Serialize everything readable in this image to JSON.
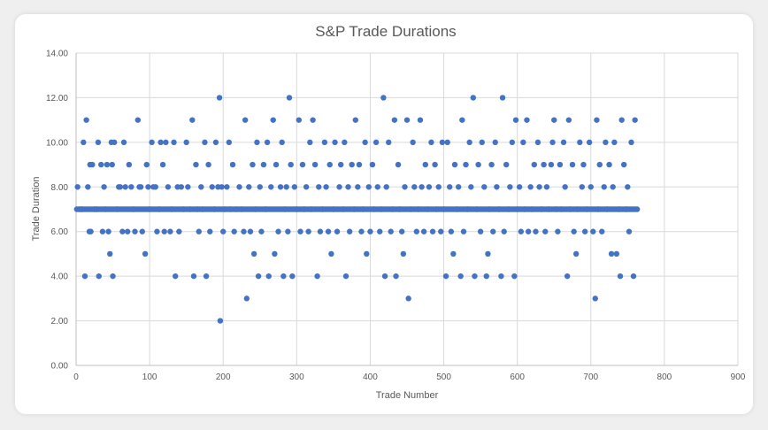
{
  "chart_data": {
    "type": "scatter",
    "title": "S&P Trade Durations",
    "xlabel": "Trade Number",
    "ylabel": "Trade Duration",
    "xlim": [
      0,
      900
    ],
    "ylim": [
      0,
      14
    ],
    "x_ticks": [
      "0",
      "100",
      "200",
      "300",
      "400",
      "500",
      "600",
      "700",
      "800",
      "900"
    ],
    "y_ticks": [
      "0.00",
      "2.00",
      "4.00",
      "6.00",
      "8.00",
      "10.00",
      "12.00",
      "14.00"
    ],
    "grid": true,
    "legend": "none",
    "marker_color": "#4472c4",
    "series": [
      {
        "points": [
          [
            2,
            8
          ],
          [
            5,
            7
          ],
          [
            8,
            7
          ],
          [
            10,
            10
          ],
          [
            12,
            4
          ],
          [
            14,
            11
          ],
          [
            16,
            8
          ],
          [
            18,
            6
          ],
          [
            19,
            9
          ],
          [
            20,
            6
          ],
          [
            22,
            9
          ],
          [
            25,
            7
          ],
          [
            28,
            7
          ],
          [
            30,
            10
          ],
          [
            31,
            4
          ],
          [
            34,
            9
          ],
          [
            36,
            6
          ],
          [
            38,
            8
          ],
          [
            40,
            7
          ],
          [
            42,
            9
          ],
          [
            44,
            6
          ],
          [
            46,
            5
          ],
          [
            48,
            10
          ],
          [
            49,
            9
          ],
          [
            50,
            4
          ],
          [
            52,
            10
          ],
          [
            56,
            7
          ],
          [
            58,
            8
          ],
          [
            60,
            8
          ],
          [
            63,
            6
          ],
          [
            65,
            10
          ],
          [
            67,
            8
          ],
          [
            70,
            6
          ],
          [
            72,
            9
          ],
          [
            75,
            8
          ],
          [
            78,
            7
          ],
          [
            80,
            6
          ],
          [
            84,
            11
          ],
          [
            86,
            8
          ],
          [
            88,
            8
          ],
          [
            90,
            6
          ],
          [
            94,
            5
          ],
          [
            96,
            9
          ],
          [
            98,
            8
          ],
          [
            100,
            7
          ],
          [
            103,
            10
          ],
          [
            105,
            8
          ],
          [
            108,
            8
          ],
          [
            110,
            6
          ],
          [
            113,
            7
          ],
          [
            115,
            10
          ],
          [
            118,
            9
          ],
          [
            120,
            6
          ],
          [
            122,
            10
          ],
          [
            125,
            8
          ],
          [
            128,
            6
          ],
          [
            130,
            7
          ],
          [
            133,
            10
          ],
          [
            135,
            4
          ],
          [
            138,
            8
          ],
          [
            140,
            6
          ],
          [
            143,
            8
          ],
          [
            146,
            7
          ],
          [
            150,
            10
          ],
          [
            152,
            8
          ],
          [
            155,
            7
          ],
          [
            158,
            11
          ],
          [
            160,
            4
          ],
          [
            163,
            9
          ],
          [
            165,
            7
          ],
          [
            167,
            6
          ],
          [
            170,
            8
          ],
          [
            172,
            7
          ],
          [
            175,
            10
          ],
          [
            177,
            4
          ],
          [
            180,
            9
          ],
          [
            182,
            6
          ],
          [
            185,
            8
          ],
          [
            188,
            7
          ],
          [
            190,
            10
          ],
          [
            193,
            8
          ],
          [
            195,
            12
          ],
          [
            196,
            2
          ],
          [
            198,
            8
          ],
          [
            200,
            6
          ],
          [
            202,
            7
          ],
          [
            205,
            8
          ],
          [
            208,
            10
          ],
          [
            210,
            7
          ],
          [
            213,
            9
          ],
          [
            215,
            6
          ],
          [
            218,
            7
          ],
          [
            222,
            8
          ],
          [
            225,
            7
          ],
          [
            228,
            6
          ],
          [
            230,
            11
          ],
          [
            232,
            3
          ],
          [
            235,
            8
          ],
          [
            237,
            6
          ],
          [
            240,
            9
          ],
          [
            242,
            5
          ],
          [
            244,
            7
          ],
          [
            246,
            10
          ],
          [
            248,
            4
          ],
          [
            250,
            8
          ],
          [
            252,
            6
          ],
          [
            255,
            9
          ],
          [
            258,
            7
          ],
          [
            260,
            10
          ],
          [
            262,
            4
          ],
          [
            265,
            8
          ],
          [
            268,
            11
          ],
          [
            270,
            5
          ],
          [
            272,
            9
          ],
          [
            275,
            6
          ],
          [
            278,
            8
          ],
          [
            280,
            10
          ],
          [
            282,
            4
          ],
          [
            284,
            7
          ],
          [
            286,
            8
          ],
          [
            288,
            6
          ],
          [
            290,
            12
          ],
          [
            292,
            9
          ],
          [
            294,
            4
          ],
          [
            297,
            8
          ],
          [
            300,
            7
          ],
          [
            303,
            11
          ],
          [
            305,
            6
          ],
          [
            308,
            9
          ],
          [
            310,
            7
          ],
          [
            313,
            8
          ],
          [
            316,
            6
          ],
          [
            318,
            10
          ],
          [
            320,
            7
          ],
          [
            322,
            11
          ],
          [
            325,
            9
          ],
          [
            328,
            4
          ],
          [
            330,
            8
          ],
          [
            332,
            6
          ],
          [
            335,
            7
          ],
          [
            338,
            10
          ],
          [
            340,
            8
          ],
          [
            343,
            6
          ],
          [
            345,
            9
          ],
          [
            347,
            5
          ],
          [
            350,
            7
          ],
          [
            352,
            10
          ],
          [
            355,
            6
          ],
          [
            358,
            8
          ],
          [
            360,
            9
          ],
          [
            363,
            7
          ],
          [
            365,
            10
          ],
          [
            367,
            4
          ],
          [
            370,
            8
          ],
          [
            372,
            6
          ],
          [
            375,
            9
          ],
          [
            378,
            7
          ],
          [
            380,
            11
          ],
          [
            383,
            8
          ],
          [
            385,
            9
          ],
          [
            388,
            6
          ],
          [
            390,
            7
          ],
          [
            393,
            10
          ],
          [
            395,
            5
          ],
          [
            398,
            8
          ],
          [
            400,
            6
          ],
          [
            403,
            9
          ],
          [
            405,
            7
          ],
          [
            408,
            10
          ],
          [
            410,
            8
          ],
          [
            413,
            6
          ],
          [
            415,
            7
          ],
          [
            418,
            12
          ],
          [
            420,
            4
          ],
          [
            422,
            8
          ],
          [
            425,
            10
          ],
          [
            428,
            6
          ],
          [
            430,
            7
          ],
          [
            433,
            11
          ],
          [
            435,
            4
          ],
          [
            438,
            9
          ],
          [
            440,
            7
          ],
          [
            443,
            6
          ],
          [
            445,
            5
          ],
          [
            447,
            8
          ],
          [
            450,
            11
          ],
          [
            452,
            3
          ],
          [
            455,
            7
          ],
          [
            458,
            10
          ],
          [
            460,
            8
          ],
          [
            463,
            6
          ],
          [
            465,
            7
          ],
          [
            468,
            11
          ],
          [
            470,
            8
          ],
          [
            473,
            6
          ],
          [
            475,
            9
          ],
          [
            478,
            7
          ],
          [
            480,
            8
          ],
          [
            483,
            10
          ],
          [
            485,
            6
          ],
          [
            488,
            9
          ],
          [
            490,
            7
          ],
          [
            493,
            8
          ],
          [
            496,
            6
          ],
          [
            498,
            10
          ],
          [
            500,
            7
          ],
          [
            503,
            4
          ],
          [
            505,
            10
          ],
          [
            508,
            8
          ],
          [
            510,
            6
          ],
          [
            513,
            5
          ],
          [
            515,
            9
          ],
          [
            518,
            7
          ],
          [
            520,
            8
          ],
          [
            523,
            4
          ],
          [
            525,
            11
          ],
          [
            527,
            6
          ],
          [
            530,
            9
          ],
          [
            532,
            7
          ],
          [
            535,
            10
          ],
          [
            537,
            8
          ],
          [
            540,
            12
          ],
          [
            542,
            4
          ],
          [
            545,
            7
          ],
          [
            547,
            9
          ],
          [
            550,
            6
          ],
          [
            552,
            10
          ],
          [
            555,
            8
          ],
          [
            558,
            4
          ],
          [
            560,
            5
          ],
          [
            562,
            7
          ],
          [
            565,
            9
          ],
          [
            567,
            6
          ],
          [
            570,
            10
          ],
          [
            572,
            8
          ],
          [
            575,
            7
          ],
          [
            578,
            4
          ],
          [
            580,
            12
          ],
          [
            582,
            6
          ],
          [
            585,
            9
          ],
          [
            588,
            7
          ],
          [
            590,
            8
          ],
          [
            593,
            10
          ],
          [
            596,
            4
          ],
          [
            598,
            11
          ],
          [
            600,
            7
          ],
          [
            603,
            8
          ],
          [
            605,
            6
          ],
          [
            608,
            10
          ],
          [
            610,
            7
          ],
          [
            613,
            11
          ],
          [
            615,
            6
          ],
          [
            618,
            8
          ],
          [
            620,
            7
          ],
          [
            623,
            9
          ],
          [
            625,
            6
          ],
          [
            628,
            10
          ],
          [
            630,
            8
          ],
          [
            633,
            7
          ],
          [
            636,
            9
          ],
          [
            638,
            6
          ],
          [
            640,
            8
          ],
          [
            643,
            7
          ],
          [
            646,
            9
          ],
          [
            648,
            10
          ],
          [
            650,
            11
          ],
          [
            653,
            7
          ],
          [
            655,
            6
          ],
          [
            658,
            9
          ],
          [
            660,
            7
          ],
          [
            663,
            10
          ],
          [
            665,
            8
          ],
          [
            668,
            4
          ],
          [
            670,
            11
          ],
          [
            672,
            7
          ],
          [
            675,
            9
          ],
          [
            677,
            6
          ],
          [
            680,
            5
          ],
          [
            682,
            7
          ],
          [
            685,
            10
          ],
          [
            688,
            8
          ],
          [
            690,
            9
          ],
          [
            692,
            6
          ],
          [
            695,
            7
          ],
          [
            698,
            10
          ],
          [
            700,
            8
          ],
          [
            703,
            6
          ],
          [
            706,
            3
          ],
          [
            708,
            11
          ],
          [
            710,
            7
          ],
          [
            712,
            9
          ],
          [
            715,
            6
          ],
          [
            718,
            8
          ],
          [
            720,
            10
          ],
          [
            722,
            7
          ],
          [
            725,
            9
          ],
          [
            728,
            5
          ],
          [
            730,
            8
          ],
          [
            732,
            10
          ],
          [
            735,
            5
          ],
          [
            738,
            7
          ],
          [
            740,
            4
          ],
          [
            742,
            11
          ],
          [
            745,
            9
          ],
          [
            748,
            7
          ],
          [
            750,
            8
          ],
          [
            752,
            6
          ],
          [
            755,
            10
          ],
          [
            758,
            4
          ],
          [
            760,
            11
          ]
        ]
      }
    ]
  }
}
